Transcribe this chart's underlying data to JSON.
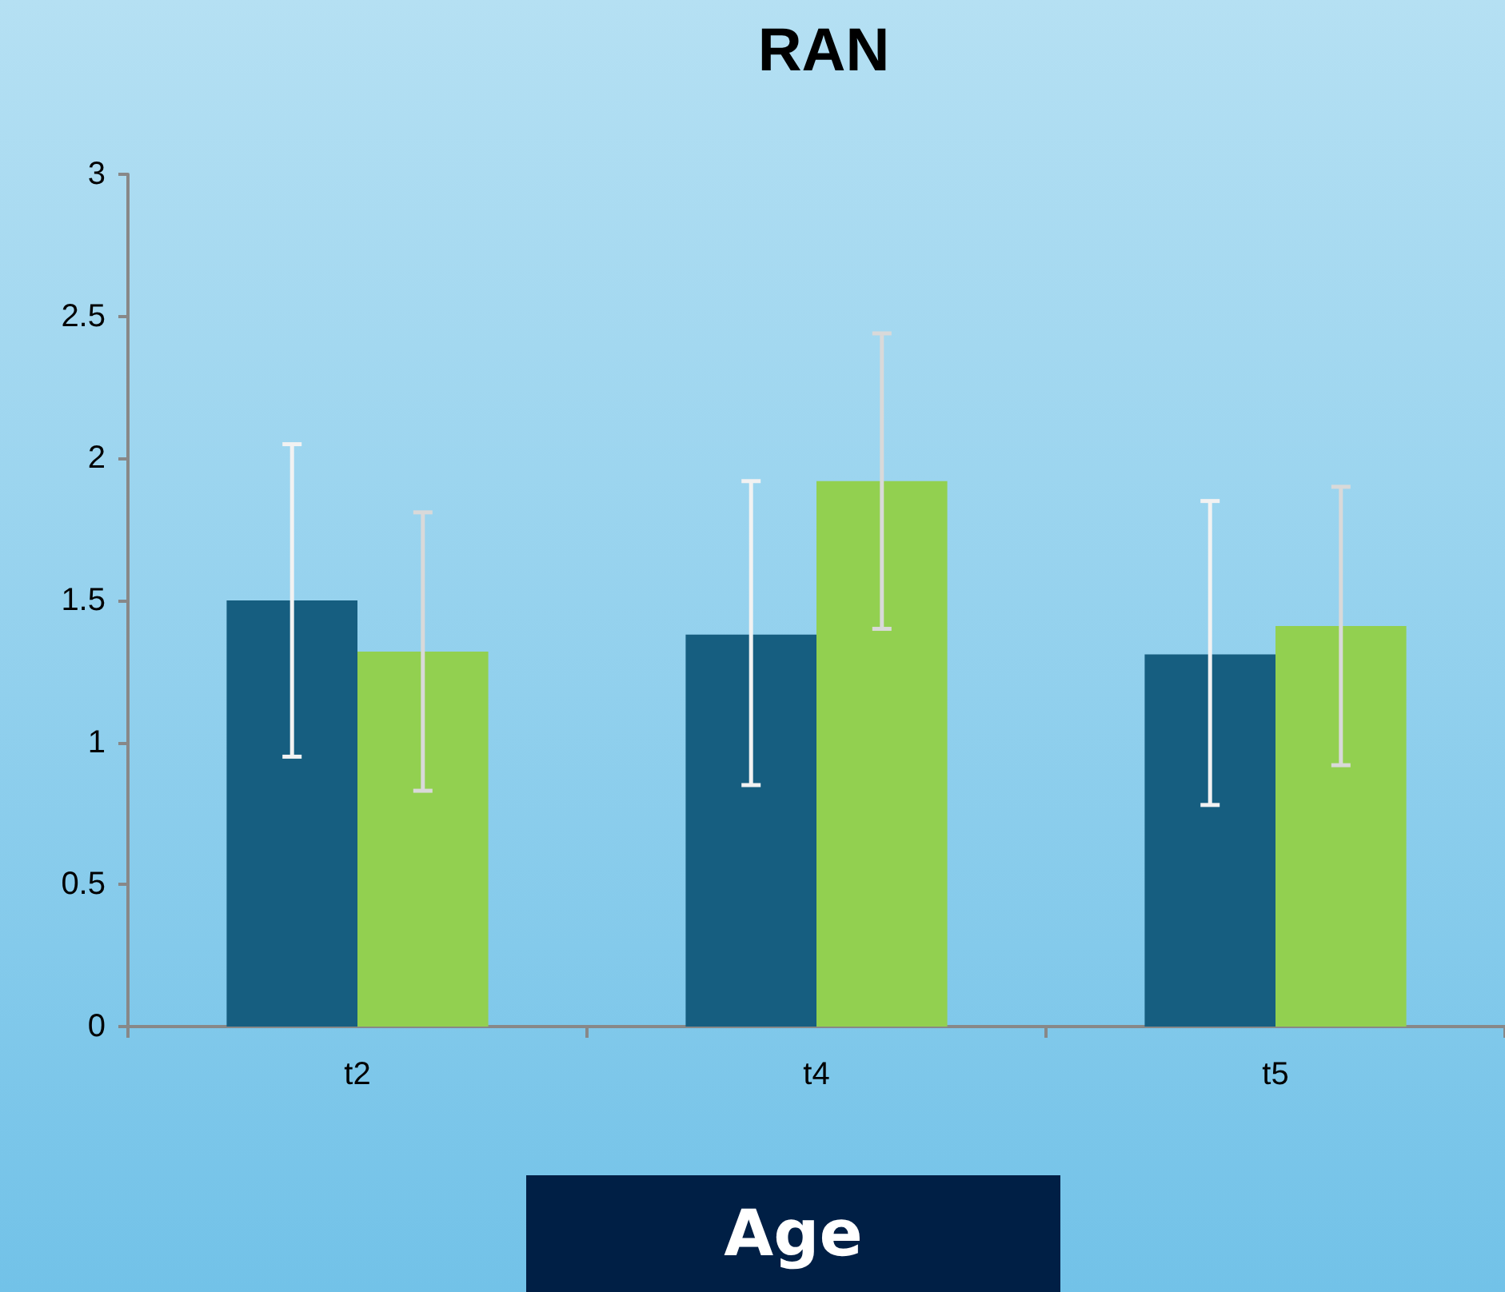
{
  "chart_data": {
    "type": "bar",
    "title": "RAN",
    "xlabel": "Age",
    "categories": [
      "t2",
      "t4",
      "t5"
    ],
    "series": [
      {
        "color": "#165e80",
        "values": [
          1.5,
          1.38,
          1.31
        ],
        "errors": [
          [
            0.95,
            2.05
          ],
          [
            0.85,
            1.92
          ],
          [
            0.78,
            1.85
          ]
        ]
      },
      {
        "color": "#92d050",
        "values": [
          1.32,
          1.92,
          1.41
        ],
        "errors": [
          [
            0.83,
            1.81
          ],
          [
            1.4,
            2.44
          ],
          [
            0.92,
            1.9
          ]
        ]
      }
    ],
    "ylim": [
      0,
      3
    ],
    "yticks": [
      0,
      0.5,
      1,
      1.5,
      2,
      2.5,
      3
    ],
    "grid": false
  }
}
